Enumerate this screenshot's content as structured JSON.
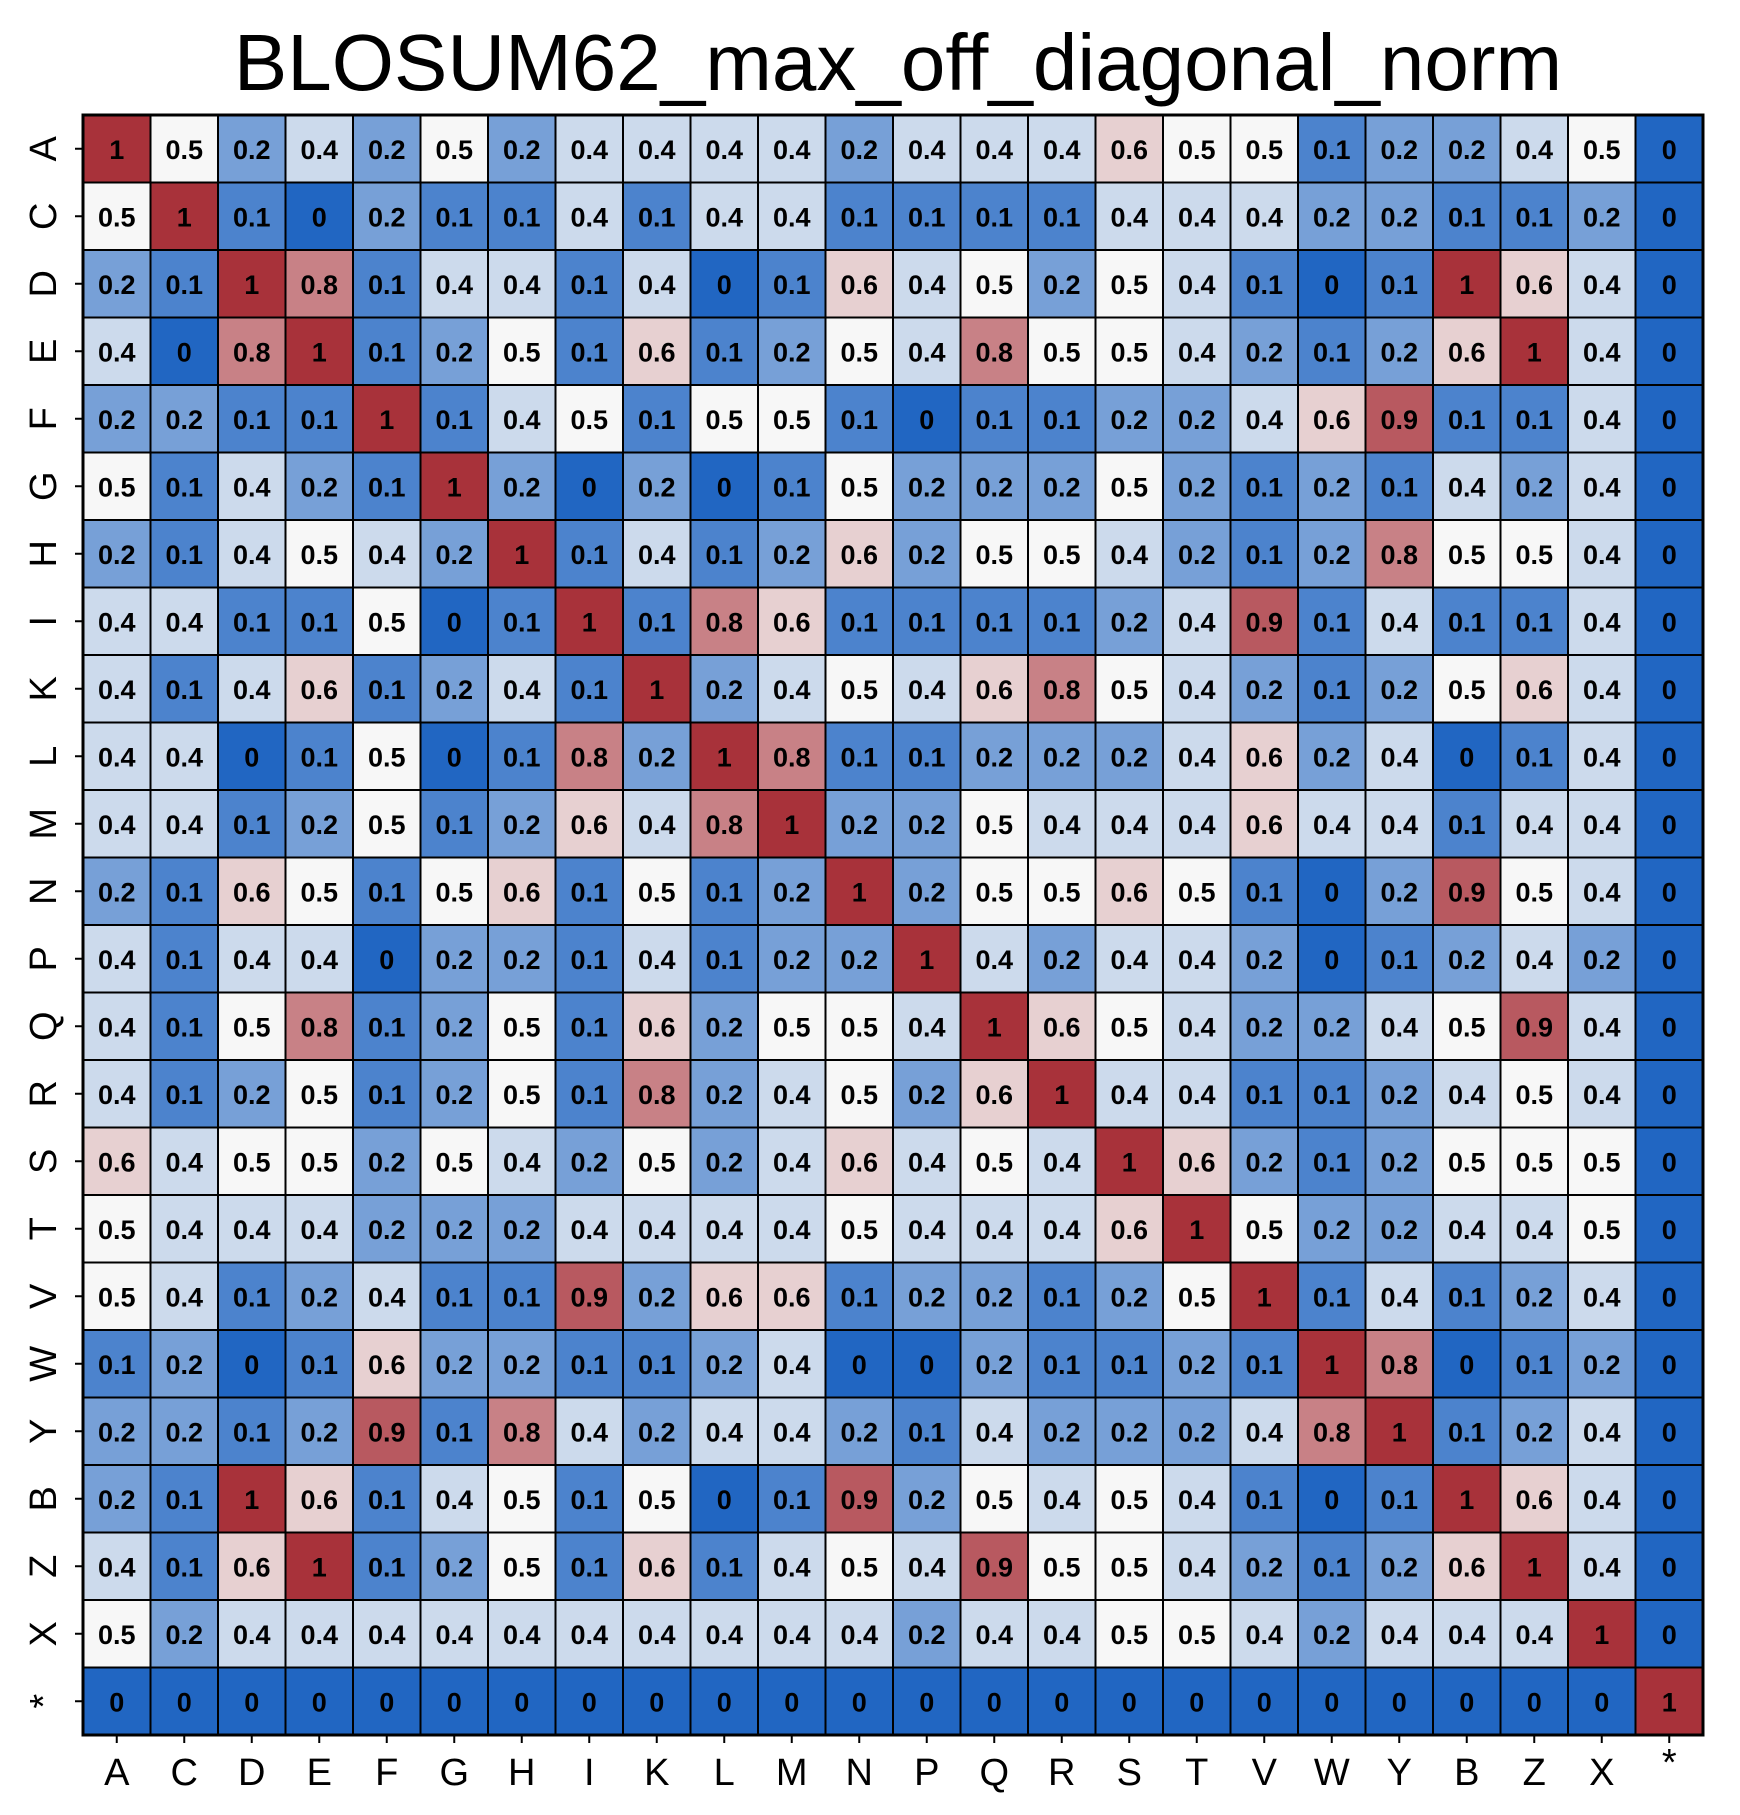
{
  "chart_data": {
    "type": "heatmap",
    "title": "BLOSUM62_max_off_diagonal_norm",
    "xlabel": "",
    "ylabel": "",
    "x_categories": [
      "A",
      "C",
      "D",
      "E",
      "F",
      "G",
      "H",
      "I",
      "K",
      "L",
      "M",
      "N",
      "P",
      "Q",
      "R",
      "S",
      "T",
      "V",
      "W",
      "Y",
      "B",
      "Z",
      "X",
      "*"
    ],
    "y_categories": [
      "A",
      "C",
      "D",
      "E",
      "F",
      "G",
      "H",
      "I",
      "K",
      "L",
      "M",
      "N",
      "P",
      "Q",
      "R",
      "S",
      "T",
      "V",
      "W",
      "Y",
      "B",
      "Z",
      "X",
      "*"
    ],
    "value_range": [
      0,
      1
    ],
    "colormap": {
      "low": "#2166c2",
      "mid": "#f7f7f7",
      "high": "#a8323a"
    },
    "grid": true,
    "values": [
      [
        1,
        0.5,
        0.2,
        0.4,
        0.2,
        0.5,
        0.2,
        0.4,
        0.4,
        0.4,
        0.4,
        0.2,
        0.4,
        0.4,
        0.4,
        0.6,
        0.5,
        0.5,
        0.1,
        0.2,
        0.2,
        0.4,
        0.5,
        0
      ],
      [
        0.5,
        1,
        0.1,
        0,
        0.2,
        0.1,
        0.1,
        0.4,
        0.1,
        0.4,
        0.4,
        0.1,
        0.1,
        0.1,
        0.1,
        0.4,
        0.4,
        0.4,
        0.2,
        0.2,
        0.1,
        0.1,
        0.2,
        0
      ],
      [
        0.2,
        0.1,
        1,
        0.8,
        0.1,
        0.4,
        0.4,
        0.1,
        0.4,
        0,
        0.1,
        0.6,
        0.4,
        0.5,
        0.2,
        0.5,
        0.4,
        0.1,
        0,
        0.1,
        1,
        0.6,
        0.4,
        0
      ],
      [
        0.4,
        0,
        0.8,
        1,
        0.1,
        0.2,
        0.5,
        0.1,
        0.6,
        0.1,
        0.2,
        0.5,
        0.4,
        0.8,
        0.5,
        0.5,
        0.4,
        0.2,
        0.1,
        0.2,
        0.6,
        1,
        0.4,
        0
      ],
      [
        0.2,
        0.2,
        0.1,
        0.1,
        1,
        0.1,
        0.4,
        0.5,
        0.1,
        0.5,
        0.5,
        0.1,
        0,
        0.1,
        0.1,
        0.2,
        0.2,
        0.4,
        0.6,
        0.9,
        0.1,
        0.1,
        0.4,
        0
      ],
      [
        0.5,
        0.1,
        0.4,
        0.2,
        0.1,
        1,
        0.2,
        0,
        0.2,
        0,
        0.1,
        0.5,
        0.2,
        0.2,
        0.2,
        0.5,
        0.2,
        0.1,
        0.2,
        0.1,
        0.4,
        0.2,
        0.4,
        0
      ],
      [
        0.2,
        0.1,
        0.4,
        0.5,
        0.4,
        0.2,
        1,
        0.1,
        0.4,
        0.1,
        0.2,
        0.6,
        0.2,
        0.5,
        0.5,
        0.4,
        0.2,
        0.1,
        0.2,
        0.8,
        0.5,
        0.5,
        0.4,
        0
      ],
      [
        0.4,
        0.4,
        0.1,
        0.1,
        0.5,
        0,
        0.1,
        1,
        0.1,
        0.8,
        0.6,
        0.1,
        0.1,
        0.1,
        0.1,
        0.2,
        0.4,
        0.9,
        0.1,
        0.4,
        0.1,
        0.1,
        0.4,
        0
      ],
      [
        0.4,
        0.1,
        0.4,
        0.6,
        0.1,
        0.2,
        0.4,
        0.1,
        1,
        0.2,
        0.4,
        0.5,
        0.4,
        0.6,
        0.8,
        0.5,
        0.4,
        0.2,
        0.1,
        0.2,
        0.5,
        0.6,
        0.4,
        0
      ],
      [
        0.4,
        0.4,
        0,
        0.1,
        0.5,
        0,
        0.1,
        0.8,
        0.2,
        1,
        0.8,
        0.1,
        0.1,
        0.2,
        0.2,
        0.2,
        0.4,
        0.6,
        0.2,
        0.4,
        0,
        0.1,
        0.4,
        0
      ],
      [
        0.4,
        0.4,
        0.1,
        0.2,
        0.5,
        0.1,
        0.2,
        0.6,
        0.4,
        0.8,
        1,
        0.2,
        0.2,
        0.5,
        0.4,
        0.4,
        0.4,
        0.6,
        0.4,
        0.4,
        0.1,
        0.4,
        0.4,
        0
      ],
      [
        0.2,
        0.1,
        0.6,
        0.5,
        0.1,
        0.5,
        0.6,
        0.1,
        0.5,
        0.1,
        0.2,
        1,
        0.2,
        0.5,
        0.5,
        0.6,
        0.5,
        0.1,
        0,
        0.2,
        0.9,
        0.5,
        0.4,
        0
      ],
      [
        0.4,
        0.1,
        0.4,
        0.4,
        0,
        0.2,
        0.2,
        0.1,
        0.4,
        0.1,
        0.2,
        0.2,
        1,
        0.4,
        0.2,
        0.4,
        0.4,
        0.2,
        0,
        0.1,
        0.2,
        0.4,
        0.2,
        0
      ],
      [
        0.4,
        0.1,
        0.5,
        0.8,
        0.1,
        0.2,
        0.5,
        0.1,
        0.6,
        0.2,
        0.5,
        0.5,
        0.4,
        1,
        0.6,
        0.5,
        0.4,
        0.2,
        0.2,
        0.4,
        0.5,
        0.9,
        0.4,
        0
      ],
      [
        0.4,
        0.1,
        0.2,
        0.5,
        0.1,
        0.2,
        0.5,
        0.1,
        0.8,
        0.2,
        0.4,
        0.5,
        0.2,
        0.6,
        1,
        0.4,
        0.4,
        0.1,
        0.1,
        0.2,
        0.4,
        0.5,
        0.4,
        0
      ],
      [
        0.6,
        0.4,
        0.5,
        0.5,
        0.2,
        0.5,
        0.4,
        0.2,
        0.5,
        0.2,
        0.4,
        0.6,
        0.4,
        0.5,
        0.4,
        1,
        0.6,
        0.2,
        0.1,
        0.2,
        0.5,
        0.5,
        0.5,
        0
      ],
      [
        0.5,
        0.4,
        0.4,
        0.4,
        0.2,
        0.2,
        0.2,
        0.4,
        0.4,
        0.4,
        0.4,
        0.5,
        0.4,
        0.4,
        0.4,
        0.6,
        1,
        0.5,
        0.2,
        0.2,
        0.4,
        0.4,
        0.5,
        0
      ],
      [
        0.5,
        0.4,
        0.1,
        0.2,
        0.4,
        0.1,
        0.1,
        0.9,
        0.2,
        0.6,
        0.6,
        0.1,
        0.2,
        0.2,
        0.1,
        0.2,
        0.5,
        1,
        0.1,
        0.4,
        0.1,
        0.2,
        0.4,
        0
      ],
      [
        0.1,
        0.2,
        0,
        0.1,
        0.6,
        0.2,
        0.2,
        0.1,
        0.1,
        0.2,
        0.4,
        0,
        0,
        0.2,
        0.1,
        0.1,
        0.2,
        0.1,
        1,
        0.8,
        0,
        0.1,
        0.2,
        0
      ],
      [
        0.2,
        0.2,
        0.1,
        0.2,
        0.9,
        0.1,
        0.8,
        0.4,
        0.2,
        0.4,
        0.4,
        0.2,
        0.1,
        0.4,
        0.2,
        0.2,
        0.2,
        0.4,
        0.8,
        1,
        0.1,
        0.2,
        0.4,
        0
      ],
      [
        0.2,
        0.1,
        1,
        0.6,
        0.1,
        0.4,
        0.5,
        0.1,
        0.5,
        0,
        0.1,
        0.9,
        0.2,
        0.5,
        0.4,
        0.5,
        0.4,
        0.1,
        0,
        0.1,
        1,
        0.6,
        0.4,
        0
      ],
      [
        0.4,
        0.1,
        0.6,
        1,
        0.1,
        0.2,
        0.5,
        0.1,
        0.6,
        0.1,
        0.4,
        0.5,
        0.4,
        0.9,
        0.5,
        0.5,
        0.4,
        0.2,
        0.1,
        0.2,
        0.6,
        1,
        0.4,
        0
      ],
      [
        0.5,
        0.2,
        0.4,
        0.4,
        0.4,
        0.4,
        0.4,
        0.4,
        0.4,
        0.4,
        0.4,
        0.4,
        0.2,
        0.4,
        0.4,
        0.5,
        0.5,
        0.4,
        0.2,
        0.4,
        0.4,
        0.4,
        1,
        0
      ],
      [
        0,
        0,
        0,
        0,
        0,
        0,
        0,
        0,
        0,
        0,
        0,
        0,
        0,
        0,
        0,
        0,
        0,
        0,
        0,
        0,
        0,
        0,
        0,
        1
      ]
    ]
  }
}
